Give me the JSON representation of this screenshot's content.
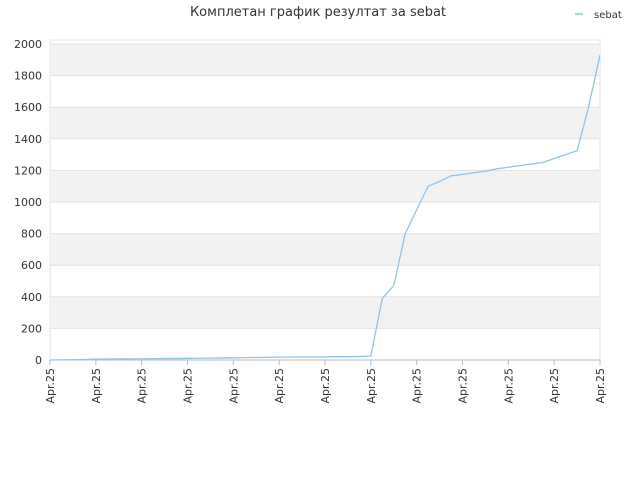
{
  "chart_data": {
    "type": "line",
    "title": "Комплетан график резултат за sebat",
    "categories": [
      "Apr.25",
      null,
      null,
      null,
      "Apr.25",
      null,
      null,
      null,
      "Apr.25",
      null,
      null,
      null,
      "Apr.25",
      null,
      null,
      null,
      "Apr.25",
      null,
      null,
      null,
      "Apr.25",
      null,
      null,
      null,
      "Apr.25",
      null,
      null,
      null,
      "Apr.25",
      null,
      null,
      null,
      "Apr.25",
      null,
      null,
      null,
      "Apr.25",
      null,
      null,
      null,
      "Apr.25",
      null,
      null,
      null,
      "Apr.25",
      null,
      null,
      null,
      "Apr.25"
    ],
    "series": [
      {
        "name": "sebat",
        "color": "#8ec3f0",
        "values": [
          0,
          1,
          2,
          3,
          5,
          6,
          7,
          7,
          8,
          8,
          9,
          9,
          10,
          11,
          12,
          13,
          14,
          15,
          16,
          17,
          18,
          18,
          19,
          19,
          20,
          21,
          21,
          22,
          25,
          390,
          470,
          800,
          950,
          1100,
          1130,
          1165,
          1175,
          1185,
          1195,
          1210,
          1220,
          1230,
          1240,
          1250,
          1275,
          1300,
          1325,
          1600,
          1930
        ]
      }
    ],
    "ylim": [
      0,
      2000
    ],
    "yticks": [
      0,
      200,
      400,
      600,
      800,
      1000,
      1200,
      1400,
      1600,
      1800,
      2000
    ],
    "grid": true,
    "legend": "top-right"
  }
}
